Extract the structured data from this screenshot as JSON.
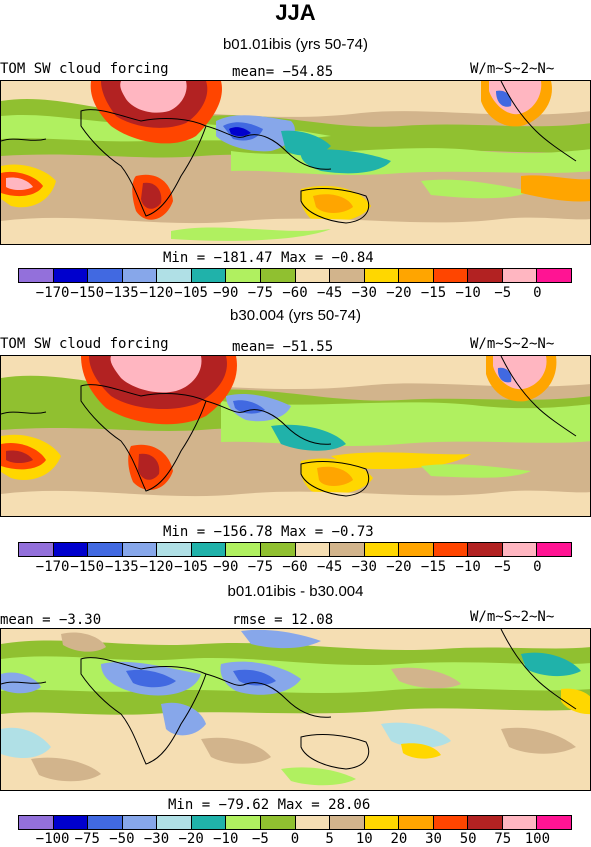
{
  "title": "JJA",
  "palette": [
    "#9370db",
    "#0000cd",
    "#4169e1",
    "#87a7ea",
    "#b0e0e6",
    "#20b2aa",
    "#b0f060",
    "#90c030",
    "#f5deb3",
    "#d2b48c",
    "#ffd700",
    "#ffa500",
    "#ff4500",
    "#b22222",
    "#ffb6c1",
    "#ff1493"
  ],
  "panels": [
    {
      "title": "b01.01ibis (yrs 50-74)",
      "left": "TOM SW cloud forcing",
      "center": "mean= −54.85",
      "right": "W/m~S~2~N~",
      "minmax": "Min = −181.47 Max =  −0.84",
      "ticks": [
        "−170",
        "−150",
        "−135",
        "−120",
        "−105",
        "−90",
        "−75",
        "−60",
        "−45",
        "−30",
        "−20",
        "−15",
        "−10",
        "−5",
        "0"
      ]
    },
    {
      "title": "b30.004 (yrs 50-74)",
      "left": "TOM SW cloud forcing",
      "center": "mean= −51.55",
      "right": "W/m~S~2~N~",
      "minmax": "Min = −156.78 Max =  −0.73",
      "ticks": [
        "−170",
        "−150",
        "−135",
        "−120",
        "−105",
        "−90",
        "−75",
        "−60",
        "−45",
        "−30",
        "−20",
        "−15",
        "−10",
        "−5",
        "0"
      ]
    },
    {
      "title": "b01.01ibis - b30.004",
      "left": "mean =  −3.30",
      "center": "rmse =  12.08",
      "right": "W/m~S~2~N~",
      "minmax": "Min = −79.62 Max =  28.06",
      "ticks": [
        "−100",
        "−75",
        "−50",
        "−30",
        "−20",
        "−10",
        "−5",
        "0",
        "5",
        "10",
        "20",
        "30",
        "50",
        "75",
        "100"
      ]
    }
  ]
}
